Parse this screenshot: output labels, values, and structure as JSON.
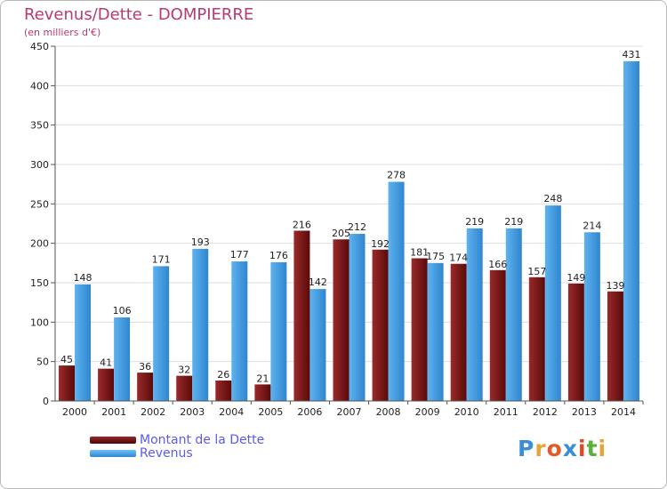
{
  "header": {
    "title": "Revenus/Dette - DOMPIERRE",
    "subtitle": "(en milliers d'€)"
  },
  "legend": {
    "items": [
      {
        "label": "Montant de la Dette",
        "color": "#7a1a1a"
      },
      {
        "label": "Revenus",
        "color": "#4da3e3"
      }
    ]
  },
  "logo": {
    "text": "Proxiti",
    "letters": [
      {
        "ch": "P",
        "color": "#3a8ed6"
      },
      {
        "ch": "r",
        "color": "#e8a23a"
      },
      {
        "ch": "o",
        "color": "#e35a2a"
      },
      {
        "ch": "x",
        "color": "#3a8ed6"
      },
      {
        "ch": "i",
        "color": "#d94a2a"
      },
      {
        "ch": "t",
        "color": "#5ab03a"
      },
      {
        "ch": "i",
        "color": "#e8a23a"
      }
    ]
  },
  "colors": {
    "title": "#b83a6f",
    "axis_text": "#222222",
    "grid": "#dddddd",
    "dette_light": "#9a2a2a",
    "dette_dark": "#5a0a0a",
    "revenus_light": "#5eb2ee",
    "revenus_dark": "#2f86cf"
  },
  "chart_data": {
    "type": "bar",
    "title": "Revenus/Dette - DOMPIERRE",
    "ylabel": "(en milliers d'€)",
    "xlabel": "",
    "ylim": [
      0,
      450
    ],
    "yticks": [
      0,
      50,
      100,
      150,
      200,
      250,
      300,
      350,
      400,
      450
    ],
    "grid": true,
    "categories": [
      "2000",
      "2001",
      "2002",
      "2003",
      "2004",
      "2005",
      "2006",
      "2007",
      "2008",
      "2009",
      "2010",
      "2011",
      "2012",
      "2013",
      "2014"
    ],
    "series": [
      {
        "name": "Montant de la Dette",
        "values": [
          45,
          41,
          36,
          32,
          26,
          21,
          216,
          205,
          192,
          181,
          174,
          166,
          157,
          149,
          139
        ]
      },
      {
        "name": "Revenus",
        "values": [
          148,
          106,
          171,
          193,
          177,
          176,
          142,
          212,
          278,
          175,
          219,
          219,
          248,
          214,
          431
        ]
      }
    ]
  }
}
